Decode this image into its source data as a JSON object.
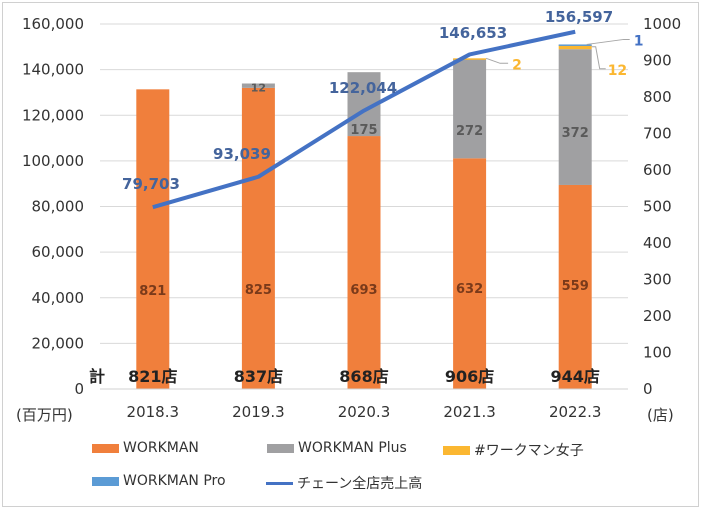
{
  "chart_data": {
    "type": "bar",
    "subtype": "stacked-bar-with-line",
    "categories": [
      "2018.3",
      "2019.3",
      "2020.3",
      "2021.3",
      "2022.3"
    ],
    "left_axis": {
      "unit_label": "(百万円)",
      "ylim": [
        0,
        160000
      ],
      "ticks": [
        "0",
        "20,000",
        "40,000",
        "60,000",
        "80,000",
        "100,000",
        "120,000",
        "140,000",
        "160,000"
      ]
    },
    "right_axis": {
      "unit_label": "(店)",
      "ylim": [
        0,
        1000
      ],
      "ticks": [
        "0",
        "100",
        "200",
        "300",
        "400",
        "500",
        "600",
        "700",
        "800",
        "900",
        "1000"
      ]
    },
    "series": [
      {
        "name": "WORKMAN",
        "axis": "right",
        "color": "#F07F3C",
        "values": [
          821,
          825,
          693,
          632,
          559
        ],
        "labels": [
          "821",
          "825",
          "693",
          "632",
          "559"
        ]
      },
      {
        "name": "WORKMAN Plus",
        "axis": "right",
        "color": "#A0A0A2",
        "values": [
          0,
          12,
          175,
          272,
          372
        ],
        "labels": [
          "",
          "12",
          "175",
          "272",
          "372"
        ]
      },
      {
        "name": "#ワークマン女子",
        "axis": "right",
        "color": "#FBB731",
        "values": [
          0,
          0,
          0,
          2,
          12
        ],
        "labels": [
          "",
          "",
          "",
          "2",
          "12"
        ]
      },
      {
        "name": "WORKMAN Pro",
        "axis": "right",
        "color": "#5B9BD5",
        "values": [
          0,
          0,
          0,
          0,
          1
        ],
        "labels": [
          "",
          "",
          "",
          "",
          "1"
        ]
      },
      {
        "name": "チェーン全店売上高",
        "axis": "left",
        "type": "line",
        "color": "#4472C4",
        "values": [
          79703,
          93039,
          122044,
          146653,
          156597
        ],
        "labels": [
          "79,703",
          "93,039",
          "122,044",
          "146,653",
          "156,597"
        ]
      }
    ],
    "totals_prefix": "計",
    "totals": [
      "821店",
      "837店",
      "868店",
      "906店",
      "944店"
    ],
    "grid": true,
    "legend_position": "bottom"
  }
}
